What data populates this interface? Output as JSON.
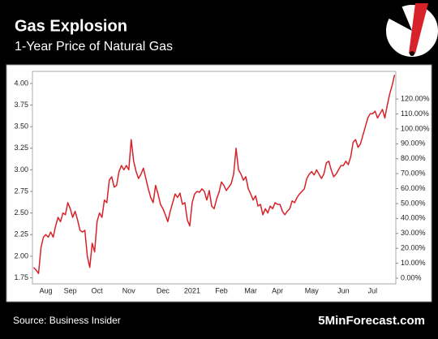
{
  "chart_data": {
    "type": "line",
    "title": "Gas Explosion",
    "subtitle": "1-Year Price of Natural Gas",
    "source": "Source: Business Insider",
    "brand": "5MinForecast.com",
    "color": "#d7222a",
    "categories": [
      null,
      null,
      null,
      null,
      null,
      "Aug",
      null,
      null,
      null,
      null,
      null,
      null,
      null,
      null,
      null,
      "Sep",
      null,
      null,
      null,
      null,
      null,
      null,
      null,
      null,
      null,
      null,
      "Oct",
      null,
      null,
      null,
      null,
      null,
      null,
      null,
      null,
      null,
      null,
      null,
      null,
      "Nov",
      null,
      null,
      null,
      null,
      null,
      null,
      null,
      null,
      null,
      null,
      null,
      null,
      null,
      "Dec",
      null,
      null,
      null,
      null,
      null,
      null,
      null,
      null,
      null,
      null,
      null,
      "2021",
      null,
      null,
      null,
      null,
      null,
      null,
      null,
      null,
      null,
      null,
      null,
      "Feb",
      null,
      null,
      null,
      null,
      null,
      null,
      null,
      null,
      null,
      null,
      null,
      "Mar",
      null,
      null,
      null,
      null,
      null,
      null,
      null,
      null,
      null,
      null,
      "Apr",
      null,
      null,
      null,
      null,
      null,
      null,
      null,
      null,
      null,
      null,
      null,
      null,
      null,
      "May",
      null,
      null,
      null,
      null,
      null,
      null,
      null,
      null,
      null,
      null,
      null,
      null,
      "Jun",
      null,
      null,
      null,
      null,
      null,
      null,
      null,
      null,
      null,
      null,
      null,
      "Jul",
      null,
      null,
      null,
      null,
      null,
      null,
      null,
      null,
      null
    ],
    "values": [
      1.87,
      1.84,
      1.8,
      2.1,
      2.22,
      2.25,
      2.22,
      2.28,
      2.22,
      2.35,
      2.45,
      2.4,
      2.5,
      2.48,
      2.62,
      2.55,
      2.45,
      2.52,
      2.42,
      2.3,
      2.28,
      2.3,
      2.0,
      1.87,
      2.15,
      2.05,
      2.4,
      2.5,
      2.45,
      2.65,
      2.62,
      2.88,
      2.92,
      2.8,
      2.82,
      2.98,
      3.05,
      3.0,
      3.05,
      3.0,
      3.35,
      3.1,
      2.98,
      2.9,
      2.95,
      3.02,
      2.9,
      2.78,
      2.68,
      2.62,
      2.82,
      2.72,
      2.6,
      2.55,
      2.48,
      2.4,
      2.52,
      2.62,
      2.72,
      2.68,
      2.73,
      2.6,
      2.62,
      2.42,
      2.35,
      2.62,
      2.72,
      2.75,
      2.74,
      2.78,
      2.75,
      2.65,
      2.76,
      2.58,
      2.55,
      2.66,
      2.74,
      2.86,
      2.82,
      2.76,
      2.8,
      2.84,
      2.95,
      3.25,
      3.0,
      2.95,
      2.88,
      2.92,
      2.78,
      2.72,
      2.65,
      2.7,
      2.58,
      2.6,
      2.48,
      2.55,
      2.5,
      2.58,
      2.55,
      2.62,
      2.6,
      2.6,
      2.52,
      2.48,
      2.52,
      2.55,
      2.64,
      2.62,
      2.68,
      2.72,
      2.75,
      2.78,
      2.9,
      2.95,
      2.98,
      2.94,
      3.0,
      2.95,
      2.9,
      2.95,
      3.08,
      3.1,
      3.0,
      2.92,
      2.95,
      3.0,
      3.05,
      3.05,
      3.1,
      3.06,
      3.15,
      3.32,
      3.35,
      3.26,
      3.3,
      3.4,
      3.5,
      3.6,
      3.65,
      3.65,
      3.68,
      3.6,
      3.65,
      3.7,
      3.6,
      3.75,
      3.88,
      3.98,
      4.1
    ],
    "ylim": [
      1.68,
      4.14
    ],
    "yticks": [
      1.75,
      {
        "value": 2.0,
        "label": "2.00"
      },
      2.25,
      {
        "value": 2.5,
        "label": "2.50"
      },
      2.75,
      {
        "value": 3.0,
        "label": "3.00"
      },
      3.25,
      {
        "value": 3.5,
        "label": "3.50"
      },
      3.75,
      {
        "value": 4.0,
        "label": "4.00"
      }
    ],
    "y2lim": [
      -3.8,
      138.5
    ],
    "y2ticks": [
      {
        "value": 0,
        "label": "0.00%"
      },
      {
        "value": 10,
        "label": "10.00%"
      },
      {
        "value": 20,
        "label": "20.00%"
      },
      {
        "value": 30,
        "label": "30.00%"
      },
      {
        "value": 40,
        "label": "40.00%"
      },
      {
        "value": 50,
        "label": "50.00%"
      },
      {
        "value": 60,
        "label": "60.00%"
      },
      {
        "value": 70,
        "label": "70.00%"
      },
      {
        "value": 80,
        "label": "80.00%"
      },
      {
        "value": 90,
        "label": "90.00%"
      },
      {
        "value": 100,
        "label": "100.00%"
      },
      {
        "value": 110,
        "label": "110.00%"
      },
      {
        "value": 120,
        "label": "120.00%"
      }
    ]
  }
}
